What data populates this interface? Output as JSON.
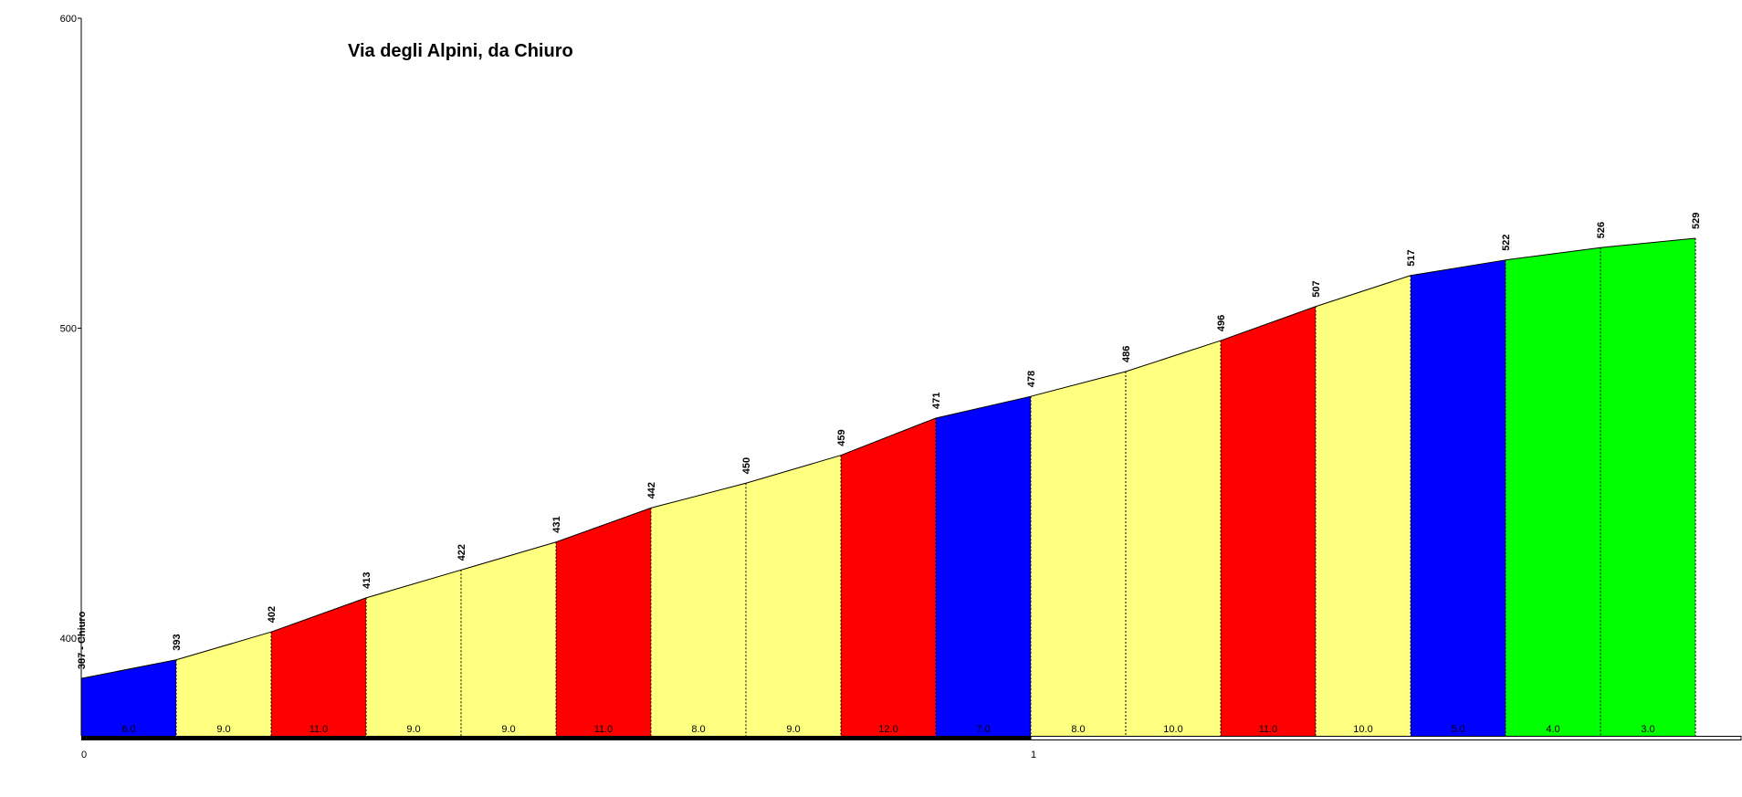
{
  "chart_data": {
    "type": "area",
    "title": "Via degli Alpini, da Chiuro",
    "xlabel": "",
    "ylabel": "",
    "ylim": [
      370,
      600
    ],
    "xlim": [
      0,
      1.75
    ],
    "yticks": [
      "400",
      "500",
      "600"
    ],
    "xticks": [
      {
        "value": 0,
        "label": "0"
      },
      {
        "value": 1,
        "label": "1"
      }
    ],
    "grid": false,
    "colors": {
      "blue": "#0000ff",
      "yellow": "#ffff80",
      "red": "#ff0000",
      "green": "#00ff00",
      "axis": "#000000"
    },
    "points": [
      {
        "x": 0.0,
        "y": 387,
        "label": "387 - Chiuro"
      },
      {
        "x": 0.1,
        "y": 393,
        "label": "393"
      },
      {
        "x": 0.2,
        "y": 402,
        "label": "402"
      },
      {
        "x": 0.3,
        "y": 413,
        "label": "413"
      },
      {
        "x": 0.4,
        "y": 422,
        "label": "422"
      },
      {
        "x": 0.5,
        "y": 431,
        "label": "431"
      },
      {
        "x": 0.6,
        "y": 442,
        "label": "442"
      },
      {
        "x": 0.7,
        "y": 450,
        "label": "450"
      },
      {
        "x": 0.8,
        "y": 459,
        "label": "459"
      },
      {
        "x": 0.9,
        "y": 471,
        "label": "471"
      },
      {
        "x": 1.0,
        "y": 478,
        "label": "478"
      },
      {
        "x": 1.1,
        "y": 486,
        "label": "486"
      },
      {
        "x": 1.2,
        "y": 496,
        "label": "496"
      },
      {
        "x": 1.3,
        "y": 507,
        "label": "507"
      },
      {
        "x": 1.4,
        "y": 517,
        "label": "517"
      },
      {
        "x": 1.5,
        "y": 522,
        "label": "522"
      },
      {
        "x": 1.6,
        "y": 526,
        "label": "526"
      },
      {
        "x": 1.7,
        "y": 529,
        "label": "529"
      }
    ],
    "segments": [
      {
        "gradient": "6.0",
        "color": "blue"
      },
      {
        "gradient": "9.0",
        "color": "yellow"
      },
      {
        "gradient": "11.0",
        "color": "red"
      },
      {
        "gradient": "9.0",
        "color": "yellow"
      },
      {
        "gradient": "9.0",
        "color": "yellow"
      },
      {
        "gradient": "11.0",
        "color": "red"
      },
      {
        "gradient": "8.0",
        "color": "yellow"
      },
      {
        "gradient": "9.0",
        "color": "yellow"
      },
      {
        "gradient": "12.0",
        "color": "red"
      },
      {
        "gradient": "7.0",
        "color": "blue"
      },
      {
        "gradient": "8.0",
        "color": "yellow"
      },
      {
        "gradient": "10.0",
        "color": "yellow"
      },
      {
        "gradient": "11.0",
        "color": "red"
      },
      {
        "gradient": "10.0",
        "color": "yellow"
      },
      {
        "gradient": "5.0",
        "color": "blue"
      },
      {
        "gradient": "4.0",
        "color": "green"
      },
      {
        "gradient": "3.0",
        "color": "green"
      }
    ]
  }
}
